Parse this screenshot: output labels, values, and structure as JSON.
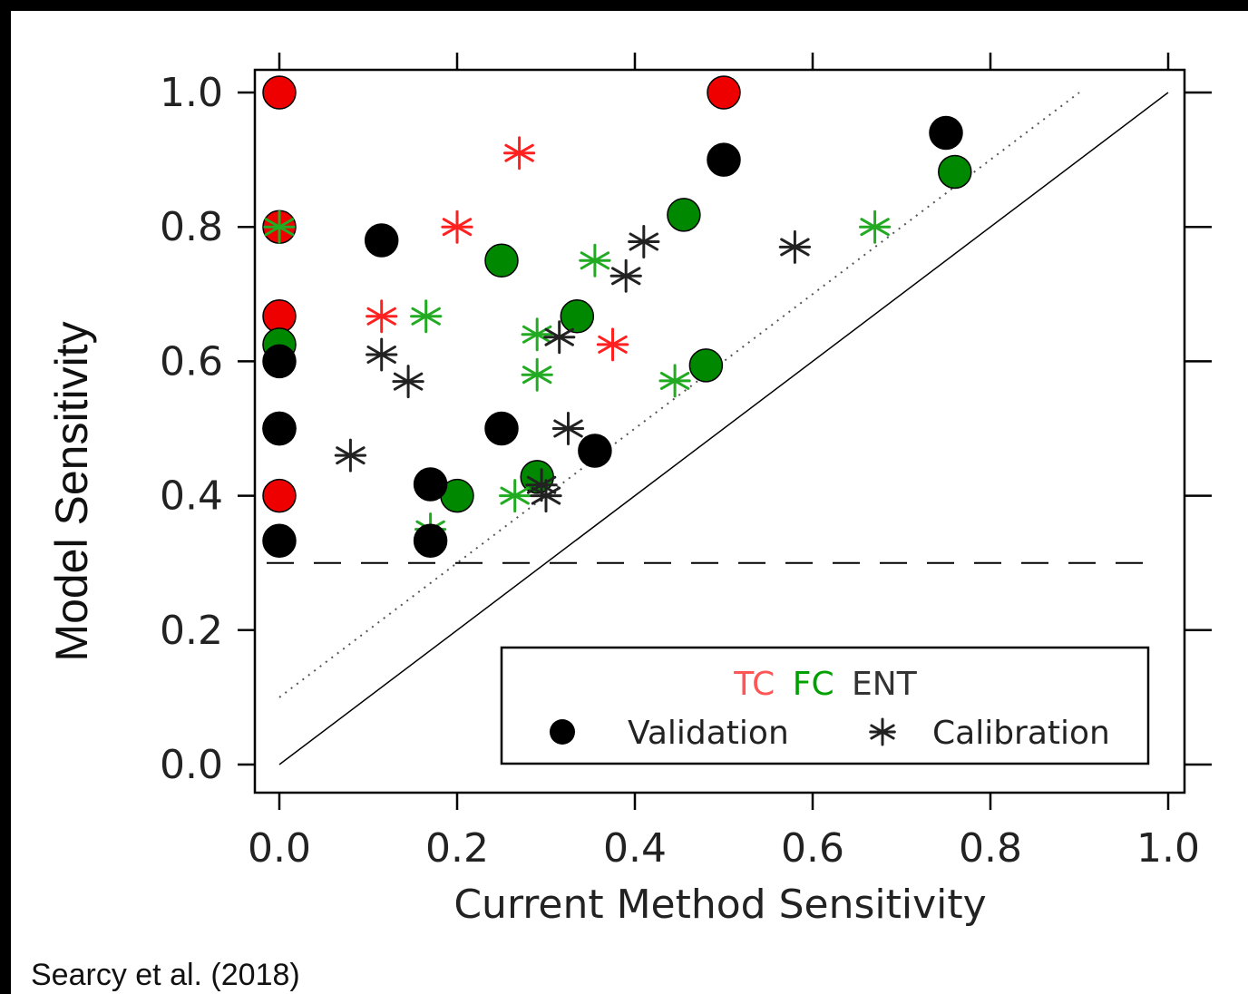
{
  "chart_data": {
    "type": "scatter",
    "title": "",
    "xlabel": "Current Method Sensitivity",
    "ylabel": "Model Sensitivity",
    "xlim": [
      0.0,
      1.0
    ],
    "ylim": [
      0.0,
      1.0
    ],
    "xticks": [
      "0.0",
      "0.2",
      "0.4",
      "0.6",
      "0.8",
      "1.0"
    ],
    "yticks": [
      "0.0",
      "0.2",
      "0.4",
      "0.6",
      "0.8",
      "1.0"
    ],
    "grid": false,
    "legend": {
      "placement": "bottom-right",
      "groups": [
        {
          "label": "TC",
          "color": "#ff2020"
        },
        {
          "label": "FC",
          "color": "#00a000"
        },
        {
          "label": "ENT",
          "color": "#222222"
        }
      ],
      "markers": [
        {
          "label": "Validation",
          "symbol": "circle"
        },
        {
          "label": "Calibration",
          "symbol": "asterisk"
        }
      ]
    },
    "reference_lines": [
      {
        "style": "solid",
        "from": [
          0.0,
          0.0
        ],
        "to": [
          1.0,
          1.0
        ]
      },
      {
        "style": "dotted",
        "from": [
          0.0,
          0.1
        ],
        "to": [
          0.9,
          1.0
        ]
      },
      {
        "style": "dashed",
        "y": 0.3
      }
    ],
    "series": [
      {
        "group": "TC",
        "marker": "circle",
        "color": "#ee0000",
        "x": [
          0.0,
          0.0,
          0.0,
          0.0,
          0.5
        ],
        "y": [
          1.0,
          0.8,
          0.667,
          0.4,
          1.0
        ]
      },
      {
        "group": "TC",
        "marker": "asterisk",
        "color": "#ff2020",
        "x": [
          0.27,
          0.2,
          0.115,
          0.375
        ],
        "y": [
          0.91,
          0.8,
          0.667,
          0.625
        ]
      },
      {
        "group": "FC",
        "marker": "circle",
        "color": "#008800",
        "x": [
          0.0,
          0.0,
          0.25,
          0.455,
          0.335,
          0.48,
          0.29,
          0.2,
          0.76
        ],
        "y": [
          0.625,
          0.5,
          0.75,
          0.818,
          0.667,
          0.594,
          0.428,
          0.4,
          0.882
        ]
      },
      {
        "group": "FC",
        "marker": "asterisk",
        "color": "#22aa22",
        "x": [
          0.0,
          0.165,
          0.355,
          0.29,
          0.29,
          0.445,
          0.265,
          0.17,
          0.67
        ],
        "y": [
          0.8,
          0.667,
          0.75,
          0.64,
          0.58,
          0.571,
          0.4,
          0.35,
          0.8
        ]
      },
      {
        "group": "ENT",
        "marker": "circle",
        "color": "#000000",
        "x": [
          0.0,
          0.0,
          0.0,
          0.115,
          0.25,
          0.17,
          0.17,
          0.355,
          0.5,
          0.75
        ],
        "y": [
          0.6,
          0.5,
          0.333,
          0.78,
          0.5,
          0.417,
          0.333,
          0.467,
          0.9,
          0.94
        ]
      },
      {
        "group": "ENT",
        "marker": "asterisk",
        "color": "#222222",
        "x": [
          0.115,
          0.145,
          0.08,
          0.315,
          0.325,
          0.295,
          0.3,
          0.39,
          0.41,
          0.58
        ],
        "y": [
          0.61,
          0.57,
          0.46,
          0.636,
          0.5,
          0.416,
          0.4,
          0.727,
          0.778,
          0.77
        ]
      }
    ]
  },
  "credit": "Searcy et al. (2018)"
}
